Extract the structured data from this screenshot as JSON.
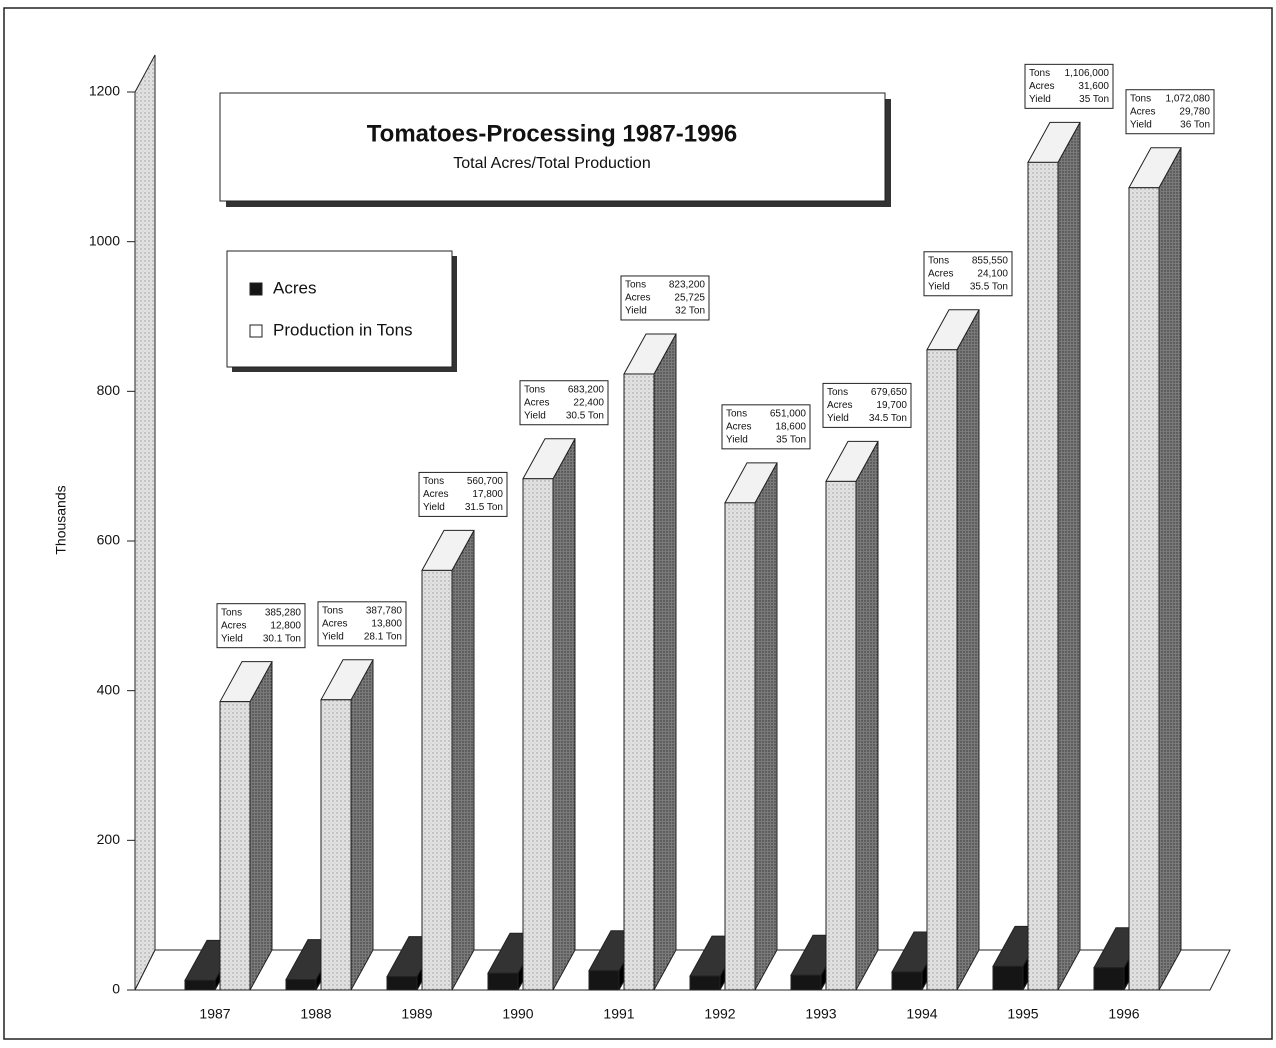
{
  "chart_data": {
    "type": "bar3d",
    "title": "Tomatoes-Processing 1987-1996",
    "subtitle": "Total Acres/Total Production",
    "y_label": "Thousands",
    "categories": [
      "1987",
      "1988",
      "1989",
      "1990",
      "1991",
      "1992",
      "1993",
      "1994",
      "1995",
      "1996"
    ],
    "series": [
      {
        "name": "Acres",
        "color": "#151515",
        "values": [
          12.8,
          13.8,
          17.8,
          22.4,
          25.725,
          18.6,
          19.7,
          24.1,
          31.6,
          29.78
        ],
        "value_labels": [
          "12,800",
          "13,800",
          "17,800",
          "22,400",
          "25,725",
          "18,600",
          "19,700",
          "24,100",
          "31,600",
          "29,780"
        ]
      },
      {
        "name": "Production in Tons",
        "color": "#d4d4d4",
        "values": [
          385.28,
          387.78,
          560.7,
          683.2,
          823.2,
          651.0,
          679.65,
          855.55,
          1106.0,
          1072.08
        ],
        "value_labels": [
          "385,280",
          "387,780",
          "560,700",
          "683,200",
          "823,200",
          "651,000",
          "679,650",
          "855,550",
          "1,106,000",
          "1,072,080"
        ]
      }
    ],
    "annotation_labels": [
      "Tons",
      "Acres",
      "Yield"
    ],
    "yield_labels": [
      "30.1 Ton",
      "28.1 Ton",
      "31.5 Ton",
      "30.5 Ton",
      "32 Ton",
      "35 Ton",
      "34.5 Ton",
      "35.5 Ton",
      "35 Ton",
      "36 Ton"
    ],
    "ylim": [
      0,
      1200
    ],
    "yticks": [
      0,
      200,
      400,
      600,
      800,
      1000,
      1200
    ]
  }
}
